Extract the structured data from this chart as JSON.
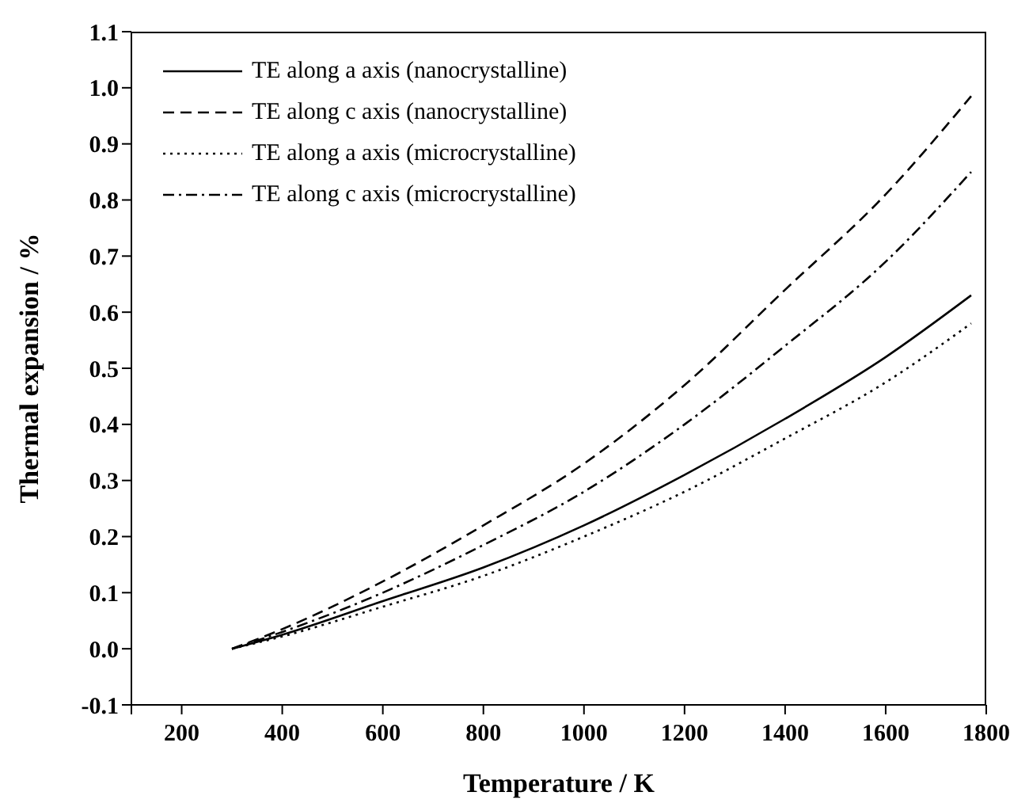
{
  "chart_data": {
    "type": "line",
    "xlabel": "Temperature / K",
    "ylabel": "Thermal expansion / %",
    "x": [
      300,
      400,
      600,
      800,
      1000,
      1200,
      1400,
      1600,
      1770
    ],
    "series": [
      {
        "name": "TE along a axis (nanocrystalline)",
        "color": "#000000",
        "line_style": "solid",
        "values": [
          0,
          0.025,
          0.085,
          0.145,
          0.22,
          0.31,
          0.41,
          0.52,
          0.63
        ]
      },
      {
        "name": "TE along c axis (nanocrystalline)",
        "color": "#000000",
        "line_style": "dashed",
        "values": [
          0,
          0.035,
          0.12,
          0.22,
          0.33,
          0.47,
          0.64,
          0.81,
          0.985
        ]
      },
      {
        "name": "TE along a axis (microcrystalline)",
        "color": "#000000",
        "line_style": "dotted",
        "values": [
          0,
          0.022,
          0.075,
          0.13,
          0.2,
          0.28,
          0.375,
          0.475,
          0.58
        ]
      },
      {
        "name": "TE along c axis (microcrystalline)",
        "color": "#000000",
        "line_style": "dashdot",
        "values": [
          0,
          0.03,
          0.1,
          0.185,
          0.28,
          0.4,
          0.54,
          0.69,
          0.85
        ]
      }
    ],
    "xlim": [
      100,
      1800
    ],
    "xticks": [
      {
        "value": 100,
        "label": null
      },
      200,
      400,
      600,
      800,
      1000,
      1200,
      1400,
      1600,
      1800
    ],
    "ylim": [
      -0.1,
      1.1
    ],
    "yticks": [
      {
        "value": -0.1,
        "label": "-0.1"
      },
      {
        "value": 0,
        "label": "0.0"
      },
      {
        "value": 0.1,
        "label": "0.1"
      },
      {
        "value": 0.2,
        "label": "0.2"
      },
      {
        "value": 0.3,
        "label": "0.3"
      },
      {
        "value": 0.4,
        "label": "0.4"
      },
      {
        "value": 0.5,
        "label": "0.5"
      },
      {
        "value": 0.6,
        "label": "0.6"
      },
      {
        "value": 0.7,
        "label": "0.7"
      },
      {
        "value": 0.8,
        "label": "0.8"
      },
      {
        "value": 0.9,
        "label": "0.9"
      },
      {
        "value": 1,
        "label": "1.0"
      },
      {
        "value": 1.1,
        "label": "1.1"
      }
    ],
    "grid": false,
    "legend": "top left",
    "marker": "none"
  }
}
